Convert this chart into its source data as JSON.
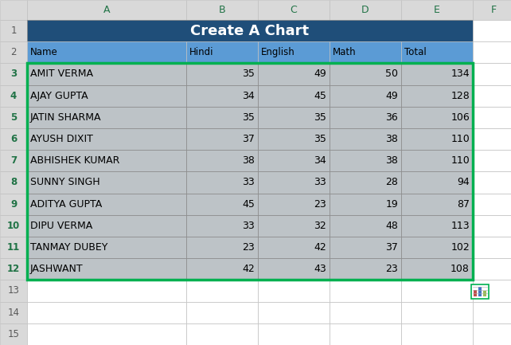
{
  "title": "Create A Chart",
  "title_bg": "#1F4E79",
  "title_text_color": "#FFFFFF",
  "header_bg": "#5B9BD5",
  "col_header_bg": "#D9D9D9",
  "col_header_text": "#217346",
  "row_num_bg": "#D9D9D9",
  "row_num_text_data": "#217346",
  "row_num_text_normal": "#595959",
  "green_border": "#00B050",
  "data_bg": "#BDC3C7",
  "empty_bg": "#FFFFFF",
  "grid_color": "#AAAAAA",
  "col_letters": [
    "A",
    "B",
    "C",
    "D",
    "E",
    "F"
  ],
  "row_labels": [
    "1",
    "2",
    "3",
    "4",
    "5",
    "6",
    "7",
    "8",
    "9",
    "10",
    "11",
    "12",
    "13",
    "14",
    "15"
  ],
  "table_headers": [
    "Name",
    "Hindi",
    "English",
    "Math",
    "Total"
  ],
  "data": [
    [
      "AMIT VERMA",
      35,
      49,
      50,
      134
    ],
    [
      "AJAY GUPTA",
      34,
      45,
      49,
      128
    ],
    [
      "JATIN SHARMA",
      35,
      35,
      36,
      106
    ],
    [
      "AYUSH DIXIT",
      37,
      35,
      38,
      110
    ],
    [
      "ABHISHEK KUMAR",
      38,
      34,
      38,
      110
    ],
    [
      "SUNNY SINGH",
      33,
      33,
      28,
      94
    ],
    [
      "ADITYA GUPTA",
      45,
      23,
      19,
      87
    ],
    [
      "DIPU VERMA",
      33,
      32,
      48,
      113
    ],
    [
      "TANMAY DUBEY",
      23,
      42,
      37,
      102
    ],
    [
      "JASHWANT",
      42,
      43,
      23,
      108
    ]
  ],
  "figsize": [
    6.42,
    4.33
  ],
  "dpi": 100
}
